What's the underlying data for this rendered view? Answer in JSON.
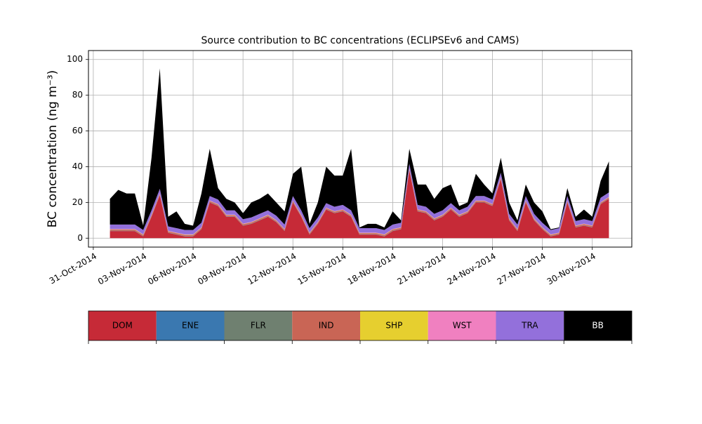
{
  "chart_data": {
    "type": "stacked_area",
    "title": "Source contribution to BC concentrations (ECLIPSEv6 and CAMS)",
    "ylabel": "BC concentration (ng m⁻³)",
    "x": [
      "2014-11-01 00:00",
      "2014-11-01 12:00",
      "2014-11-02 00:00",
      "2014-11-02 12:00",
      "2014-11-03 00:00",
      "2014-11-03 12:00",
      "2014-11-04 00:00",
      "2014-11-04 12:00",
      "2014-11-05 00:00",
      "2014-11-05 12:00",
      "2014-11-06 00:00",
      "2014-11-06 12:00",
      "2014-11-07 00:00",
      "2014-11-07 12:00",
      "2014-11-08 00:00",
      "2014-11-08 12:00",
      "2014-11-09 00:00",
      "2014-11-09 12:00",
      "2014-11-10 00:00",
      "2014-11-10 12:00",
      "2014-11-11 00:00",
      "2014-11-11 12:00",
      "2014-11-12 00:00",
      "2014-11-12 12:00",
      "2014-11-13 00:00",
      "2014-11-13 12:00",
      "2014-11-14 00:00",
      "2014-11-14 12:00",
      "2014-11-15 00:00",
      "2014-11-15 12:00",
      "2014-11-16 00:00",
      "2014-11-16 12:00",
      "2014-11-17 00:00",
      "2014-11-17 12:00",
      "2014-11-18 00:00",
      "2014-11-18 12:00",
      "2014-11-19 00:00",
      "2014-11-19 12:00",
      "2014-11-20 00:00",
      "2014-11-20 12:00",
      "2014-11-21 00:00",
      "2014-11-21 12:00",
      "2014-11-22 00:00",
      "2014-11-22 12:00",
      "2014-11-23 00:00",
      "2014-11-23 12:00",
      "2014-11-24 00:00",
      "2014-11-24 12:00",
      "2014-11-25 00:00",
      "2014-11-25 12:00",
      "2014-11-26 00:00",
      "2014-11-26 12:00",
      "2014-11-27 00:00",
      "2014-11-27 12:00",
      "2014-11-28 00:00",
      "2014-11-28 12:00",
      "2014-11-29 00:00",
      "2014-11-29 12:00",
      "2014-11-30 00:00",
      "2014-11-30 12:00",
      "2014-12-01 00:00"
    ],
    "series": [
      {
        "name": "DOM",
        "color": "#c62a37",
        "values": [
          4,
          4,
          4,
          4,
          1,
          12,
          24,
          3,
          2,
          1,
          1,
          5,
          20,
          18,
          12,
          12,
          7,
          8,
          10,
          12,
          9,
          4,
          20,
          12,
          2,
          8,
          16,
          14,
          15,
          12,
          2,
          2,
          2,
          1,
          4,
          5,
          38,
          15,
          14,
          10,
          12,
          16,
          12,
          14,
          20,
          20,
          18,
          33,
          10,
          4,
          20,
          10,
          5,
          1,
          2,
          20,
          6,
          7,
          6,
          19,
          22
        ]
      },
      {
        "name": "ENE",
        "color": "#3a78b0",
        "values": [
          0.1,
          0.1,
          0.1,
          0.1,
          0.1,
          0.1,
          0.1,
          0.1,
          0.1,
          0.1,
          0.1,
          0.1,
          0.1,
          0.1,
          0.1,
          0.1,
          0.1,
          0.1,
          0.1,
          0.1,
          0.1,
          0.1,
          0.1,
          0.1,
          0.1,
          0.1,
          0.1,
          0.1,
          0.1,
          0.1,
          0.1,
          0.1,
          0.1,
          0.1,
          0.1,
          0.1,
          0.1,
          0.1,
          0.1,
          0.1,
          0.1,
          0.1,
          0.1,
          0.1,
          0.1,
          0.1,
          0.1,
          0.1,
          0.1,
          0.1,
          0.1,
          0.1,
          0.1,
          0.1,
          0.1,
          0.1,
          0.1,
          0.1,
          0.1,
          0.1,
          0.1
        ]
      },
      {
        "name": "FLR",
        "color": "#6f8070",
        "values": [
          0.1,
          0.1,
          0.1,
          0.1,
          0.1,
          0.1,
          0.1,
          0.1,
          0.1,
          0.1,
          0.1,
          0.1,
          0.1,
          0.1,
          0.1,
          0.1,
          0.1,
          0.1,
          0.1,
          0.1,
          0.1,
          0.1,
          0.1,
          0.1,
          0.1,
          0.1,
          0.1,
          0.1,
          0.1,
          0.1,
          0.1,
          0.1,
          0.1,
          0.1,
          0.1,
          0.1,
          0.1,
          0.1,
          0.1,
          0.1,
          0.1,
          0.1,
          0.1,
          0.1,
          0.1,
          0.1,
          0.1,
          0.1,
          0.1,
          0.1,
          0.1,
          0.1,
          0.1,
          0.1,
          0.1,
          0.1,
          0.1,
          0.1,
          0.1,
          0.1,
          0.1
        ]
      },
      {
        "name": "IND",
        "color": "#c96555",
        "values": [
          0.6,
          0.6,
          0.6,
          0.6,
          0.6,
          0.6,
          0.6,
          0.6,
          0.6,
          0.6,
          0.6,
          0.6,
          0.6,
          0.6,
          0.6,
          0.6,
          0.6,
          0.6,
          0.6,
          0.6,
          0.6,
          0.6,
          0.6,
          0.6,
          0.6,
          0.6,
          0.6,
          0.6,
          0.6,
          0.6,
          0.6,
          0.6,
          0.6,
          0.6,
          0.6,
          0.6,
          0.6,
          0.6,
          0.6,
          0.6,
          0.6,
          0.6,
          0.6,
          0.6,
          0.6,
          0.6,
          0.6,
          0.6,
          0.6,
          0.6,
          0.6,
          0.6,
          0.6,
          0.6,
          0.6,
          0.6,
          0.6,
          0.6,
          0.6,
          0.6,
          0.6
        ]
      },
      {
        "name": "SHP",
        "color": "#e6cf2f",
        "values": [
          0.1,
          0.1,
          0.1,
          0.1,
          0.1,
          0.1,
          0.1,
          0.1,
          0.1,
          0.1,
          0.1,
          0.1,
          0.1,
          0.1,
          0.1,
          0.1,
          0.1,
          0.1,
          0.1,
          0.1,
          0.1,
          0.1,
          0.1,
          0.1,
          0.1,
          0.1,
          0.1,
          0.1,
          0.1,
          0.1,
          0.1,
          0.1,
          0.1,
          0.1,
          0.1,
          0.1,
          0.1,
          0.1,
          0.1,
          0.1,
          0.1,
          0.1,
          0.1,
          0.1,
          0.1,
          0.1,
          0.1,
          0.1,
          0.1,
          0.1,
          0.1,
          0.1,
          0.1,
          0.1,
          0.1,
          0.1,
          0.1,
          0.1,
          0.1,
          0.1,
          0.1
        ]
      },
      {
        "name": "WST",
        "color": "#f080c0",
        "values": [
          0.2,
          0.2,
          0.2,
          0.2,
          0.2,
          0.2,
          0.2,
          0.2,
          0.2,
          0.2,
          0.2,
          0.2,
          0.2,
          0.2,
          0.2,
          0.2,
          0.2,
          0.2,
          0.2,
          0.2,
          0.2,
          0.2,
          0.2,
          0.2,
          0.2,
          0.2,
          0.2,
          0.2,
          0.2,
          0.2,
          0.2,
          0.2,
          0.2,
          0.2,
          0.2,
          0.2,
          0.2,
          0.2,
          0.2,
          0.2,
          0.2,
          0.2,
          0.2,
          0.2,
          0.2,
          0.2,
          0.2,
          0.2,
          0.2,
          0.2,
          0.2,
          0.2,
          0.2,
          0.2,
          0.2,
          0.2,
          0.2,
          0.2,
          0.2,
          0.2,
          0.2
        ]
      },
      {
        "name": "TRA",
        "color": "#9370db",
        "values": [
          2.5,
          2.5,
          2.5,
          2.5,
          2.5,
          2.5,
          2.5,
          2.5,
          2.5,
          2.5,
          2.5,
          2.5,
          2.5,
          2.5,
          2.5,
          2.5,
          2.5,
          2.5,
          2.5,
          2.5,
          2.5,
          2.5,
          2.5,
          2.5,
          2.5,
          2.5,
          2.5,
          2.5,
          2.5,
          2.5,
          2.5,
          2.5,
          2.5,
          2.5,
          2.5,
          2.5,
          2.5,
          2.5,
          2.5,
          2.5,
          2.5,
          2.5,
          2.5,
          2.5,
          2.5,
          2.5,
          2.5,
          2.5,
          2.5,
          2.5,
          2.5,
          2.5,
          2.5,
          2.5,
          2.5,
          2.5,
          2.5,
          2.5,
          2.5,
          2.5,
          2.5
        ]
      },
      {
        "name": "BB",
        "color": "#000000",
        "values": [
          14.4,
          19.4,
          17.4,
          17.4,
          2.4,
          29.4,
          67.4,
          5.4,
          9.4,
          3.4,
          2.4,
          16.4,
          26.4,
          6.4,
          6.4,
          4.4,
          3.4,
          8.4,
          8.4,
          9.4,
          7.4,
          7.4,
          12.4,
          24.4,
          2.4,
          8.4,
          20.4,
          17.4,
          16.4,
          34.4,
          0.4,
          2.4,
          2.4,
          1.4,
          7.4,
          1.4,
          8.4,
          11.4,
          12.4,
          8.4,
          12.4,
          10.4,
          2.4,
          2.4,
          12.4,
          6.4,
          3.4,
          8.4,
          6.4,
          2.4,
          6.4,
          6.4,
          6.4,
          0.4,
          0.4,
          4.4,
          2.4,
          5.4,
          2.4,
          9.4,
          17.4
        ]
      }
    ],
    "xlim": [
      "2014-10-30 17:00",
      "2014-12-02 09:00"
    ],
    "xticks": [
      {
        "value": "2014-10-31",
        "label": "31-Oct-2014"
      },
      {
        "value": "2014-11-03",
        "label": "03-Nov-2014"
      },
      {
        "value": "2014-11-06",
        "label": "06-Nov-2014"
      },
      {
        "value": "2014-11-09",
        "label": "09-Nov-2014"
      },
      {
        "value": "2014-11-12",
        "label": "12-Nov-2014"
      },
      {
        "value": "2014-11-15",
        "label": "15-Nov-2014"
      },
      {
        "value": "2014-11-18",
        "label": "18-Nov-2014"
      },
      {
        "value": "2014-11-21",
        "label": "21-Nov-2014"
      },
      {
        "value": "2014-11-24",
        "label": "24-Nov-2014"
      },
      {
        "value": "2014-11-27",
        "label": "27-Nov-2014"
      },
      {
        "value": "2014-11-30",
        "label": "30-Nov-2014"
      }
    ],
    "ylim": [
      -5,
      105
    ],
    "yticks": [
      0,
      20,
      40,
      60,
      80,
      100
    ],
    "grid": true
  }
}
